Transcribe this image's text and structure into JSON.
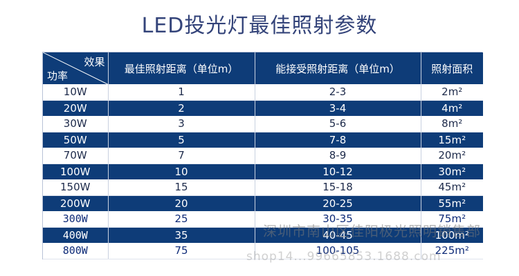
{
  "title": "LED投光灯最佳照射参数",
  "table": {
    "corner_top": "效果",
    "corner_bottom": "功率",
    "headers": [
      "最佳照射距离（单位m）",
      "能接受照射距离（单位m）",
      "照射面积"
    ],
    "rows": [
      {
        "power": "10W",
        "best": "1",
        "acceptable": "2-3",
        "area": "2m²"
      },
      {
        "power": "20W",
        "best": "2",
        "acceptable": "3-4",
        "area": "4m²"
      },
      {
        "power": "30W",
        "best": "3",
        "acceptable": "5-6",
        "area": "8m²"
      },
      {
        "power": "50W",
        "best": "5",
        "acceptable": "7-8",
        "area": "15m²"
      },
      {
        "power": "70W",
        "best": "7",
        "acceptable": "8-9",
        "area": "20m²"
      },
      {
        "power": "100W",
        "best": "10",
        "acceptable": "10-12",
        "area": "30m²"
      },
      {
        "power": "150W",
        "best": "15",
        "acceptable": "15-18",
        "area": "45m²"
      },
      {
        "power": "200W",
        "best": "20",
        "acceptable": "20-25",
        "area": "55m²"
      },
      {
        "power": "300W",
        "best": "25",
        "acceptable": "30-35",
        "area": "75m²"
      },
      {
        "power": "400W",
        "best": "35",
        "acceptable": "40-45",
        "area": "100m²"
      },
      {
        "power": "800W",
        "best": "75",
        "acceptable": "100-105",
        "area": "225m²"
      }
    ]
  },
  "watermark": {
    "line1": "深圳市南山区佳阳极光照明销售部",
    "line2": "shop14...99665853.1688.com"
  },
  "colors": {
    "header_bg": "#0e3c78",
    "title": "#34447a"
  }
}
